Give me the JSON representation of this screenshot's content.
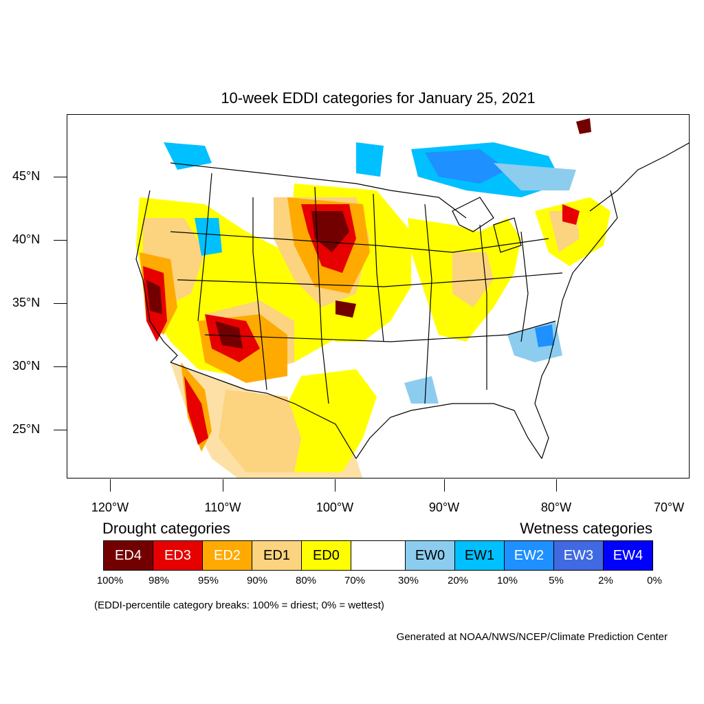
{
  "title": "10-week EDDI categories for January 25, 2021",
  "lat_ticks": [
    "45°N",
    "40°N",
    "35°N",
    "30°N",
    "25°N"
  ],
  "lon_ticks": [
    "120°W",
    "110°W",
    "100°W",
    "90°W",
    "80°W",
    "70°W"
  ],
  "legend": {
    "drought_heading": "Drought categories",
    "wetness_heading": "Wetness categories",
    "categories": [
      {
        "label": "ED4",
        "color": "#730000",
        "text_color": "#ffffff"
      },
      {
        "label": "ED3",
        "color": "#e60000",
        "text_color": "#ffffff"
      },
      {
        "label": "ED2",
        "color": "#ffaa00",
        "text_color": "#ffffff"
      },
      {
        "label": "ED1",
        "color": "#fcd37f",
        "text_color": "#000000"
      },
      {
        "label": "ED0",
        "color": "#ffff00",
        "text_color": "#000000"
      },
      {
        "label": "",
        "color": "#ffffff",
        "text_color": "#000000"
      },
      {
        "label": "EW0",
        "color": "#8ccdef",
        "text_color": "#000000"
      },
      {
        "label": "EW1",
        "color": "#00c0ff",
        "text_color": "#000000"
      },
      {
        "label": "EW2",
        "color": "#1e90ff",
        "text_color": "#ffffff"
      },
      {
        "label": "EW3",
        "color": "#4169e1",
        "text_color": "#ffffff"
      },
      {
        "label": "EW4",
        "color": "#0000ff",
        "text_color": "#ffffff"
      }
    ],
    "percentiles": [
      "100%",
      "98%",
      "95%",
      "90%",
      "80%",
      "70%",
      "30%",
      "20%",
      "10%",
      "5%",
      "2%",
      "0%"
    ]
  },
  "breaks_note": "(EDDI-percentile category breaks: 100% = driest; 0% = wettest)",
  "credit": "Generated at NOAA/NWS/NCEP/Climate Prediction Center"
}
